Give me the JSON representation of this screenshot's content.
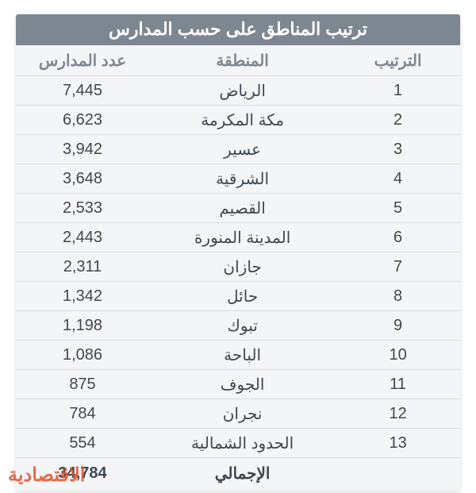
{
  "title": "ترتيب المناطق على حسب المدارس",
  "columns": {
    "rank": "الترتيب",
    "region": "المنطقة",
    "count": "عدد المدارس"
  },
  "rows": [
    {
      "rank": "1",
      "region": "الرياض",
      "count": "7,445"
    },
    {
      "rank": "2",
      "region": "مكة المكرمة",
      "count": "6,623"
    },
    {
      "rank": "3",
      "region": "عسير",
      "count": "3,942"
    },
    {
      "rank": "4",
      "region": "الشرقية",
      "count": "3,648"
    },
    {
      "rank": "5",
      "region": "القصيم",
      "count": "2,533"
    },
    {
      "rank": "6",
      "region": "المدينة المنورة",
      "count": "2,443"
    },
    {
      "rank": "7",
      "region": "جازان",
      "count": "2,311"
    },
    {
      "rank": "8",
      "region": "حائل",
      "count": "1,342"
    },
    {
      "rank": "9",
      "region": "تبوك",
      "count": "1,198"
    },
    {
      "rank": "10",
      "region": "الباحة",
      "count": "1,086"
    },
    {
      "rank": "11",
      "region": "الجوف",
      "count": "875"
    },
    {
      "rank": "12",
      "region": "نجران",
      "count": "784"
    },
    {
      "rank": "13",
      "region": "الحدود الشمالية",
      "count": "554"
    }
  ],
  "total": {
    "label": "الإجمالي",
    "count": "34,784"
  },
  "watermark": "الاقتصادية",
  "styling": {
    "header_bg": "#7d8791",
    "header_text": "#ffffff",
    "col_header_color": "#7d8791",
    "cell_text_color": "#3d4852",
    "row_border_color": "#d8dcdf",
    "table_bg": "#f4f5f6",
    "watermark_color": "#e2532c",
    "title_fontsize": 22,
    "header_fontsize": 20,
    "cell_fontsize": 20,
    "watermark_fontsize": 24
  }
}
